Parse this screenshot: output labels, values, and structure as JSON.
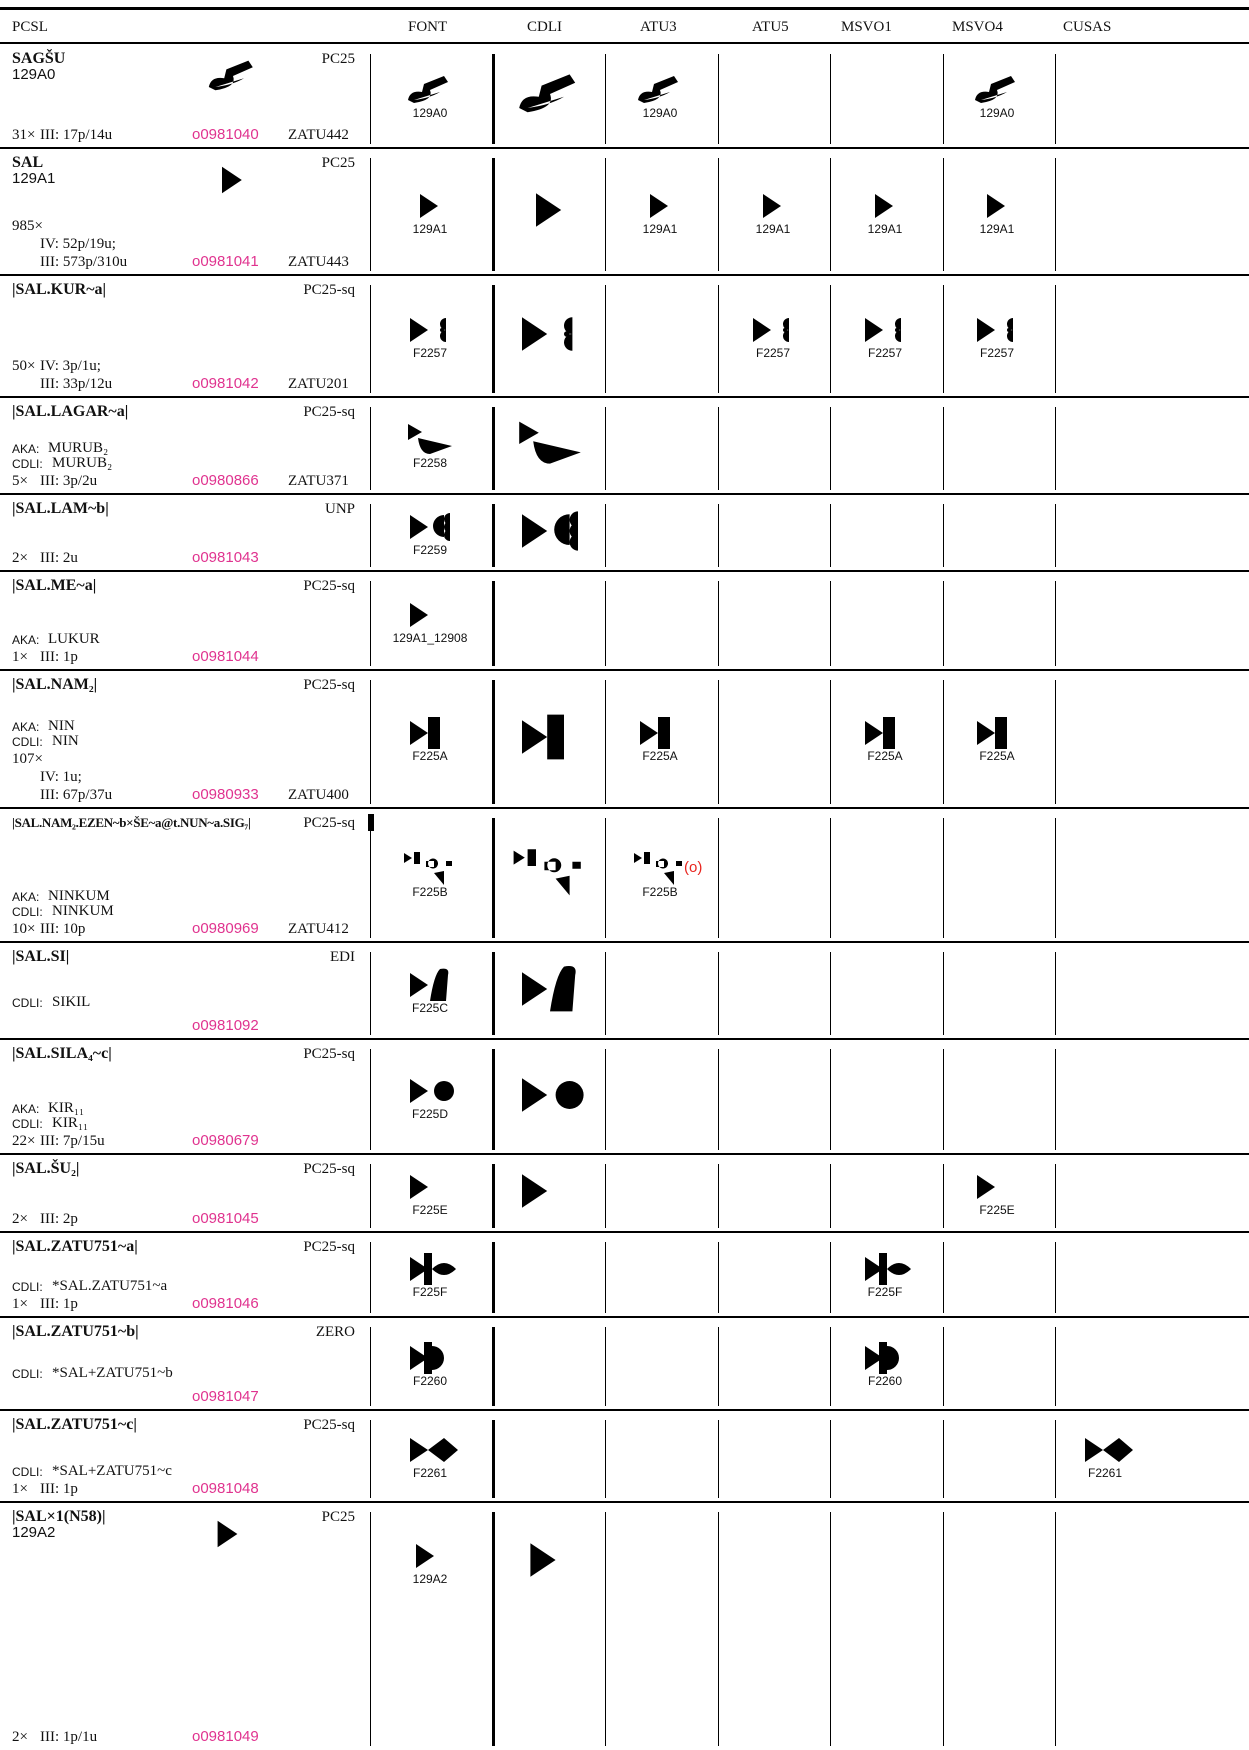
{
  "header": {
    "columns": [
      "PCSL",
      "FONT",
      "CDLI",
      "ATU3",
      "ATU5",
      "MSVO1",
      "MSVO4",
      "CUSAS"
    ]
  },
  "rows": [
    {
      "name": "SAGŠU",
      "code": "129A0",
      "status": "PC25",
      "notes": [],
      "count": "31×",
      "periods": [
        "III: 17p/14u"
      ],
      "id": "o0981040",
      "zatu": "ZATU442",
      "cells": [
        "129A0",
        true,
        "129A0",
        null,
        null,
        "129A0",
        null
      ]
    },
    {
      "name": "SAL",
      "code": "129A1",
      "status": "PC25",
      "notes": [],
      "count": "985×",
      "periods": [
        "IV: 52p/19u;",
        "III: 573p/310u"
      ],
      "id": "o0981041",
      "zatu": "ZATU443",
      "cells": [
        "129A1",
        true,
        "129A1",
        "129A1",
        "129A1",
        "129A1",
        null
      ]
    },
    {
      "name": "|SAL.KUR~a|",
      "status": "PC25-sq",
      "notes": [],
      "count": "50×",
      "periods": [
        "IV: 3p/1u;",
        "III: 33p/12u"
      ],
      "id": "o0981042",
      "zatu": "ZATU201",
      "cells": [
        "F2257",
        true,
        null,
        "F2257",
        "F2257",
        "F2257",
        null
      ]
    },
    {
      "name": "|SAL.LAGAR~a|",
      "status": "PC25-sq",
      "notes": [
        {
          "tag": "AKA:",
          "text": "MURUB₂"
        },
        {
          "tag": "CDLI:",
          "text": "MURUB₂"
        }
      ],
      "count": "5×",
      "periods": [
        "III: 3p/2u"
      ],
      "id": "o0980866",
      "zatu": "ZATU371",
      "cells": [
        "F2258",
        true,
        null,
        null,
        null,
        null,
        null
      ]
    },
    {
      "name": "|SAL.LAM~b|",
      "status": "UNP",
      "notes": [],
      "count": "2×",
      "periods": [
        "III: 2u"
      ],
      "id": "o0981043",
      "cells": [
        "F2259",
        true,
        null,
        null,
        null,
        null,
        null
      ]
    },
    {
      "name": "|SAL.ME~a|",
      "status": "PC25-sq",
      "notes": [
        {
          "tag": "AKA:",
          "text": "LUKUR"
        }
      ],
      "count": "1×",
      "periods": [
        "III: 1p"
      ],
      "id": "o0981044",
      "cells": [
        "129A1_12908",
        null,
        null,
        null,
        null,
        null,
        null
      ]
    },
    {
      "name": "|SAL.NAM₂|",
      "status": "PC25-sq",
      "notes": [
        {
          "tag": "AKA:",
          "text": "NIN"
        },
        {
          "tag": "CDLI:",
          "text": "NIN"
        }
      ],
      "count": "107×",
      "periods": [
        "IV: 1u;",
        "III: 67p/37u"
      ],
      "id": "o0980933",
      "zatu": "ZATU400",
      "cells": [
        "F225A",
        true,
        "F225A",
        null,
        "F225A",
        "F225A",
        null
      ]
    },
    {
      "name": "|SAL.NAM₂.EZEN~b×ŠE~a@t.NUN~a.SIG₇|",
      "status": "PC25-sq",
      "notes": [
        {
          "tag": "AKA:",
          "text": "NINKUM"
        },
        {
          "tag": "CDLI:",
          "text": "NINKUM"
        }
      ],
      "count": "10×",
      "periods": [
        "III: 10p"
      ],
      "id": "o0980969",
      "zatu": "ZATU412",
      "cells": [
        "F225B",
        true,
        {
          "label": "F225B",
          "note": "(o)",
          "color": "#e8251f"
        },
        null,
        null,
        null,
        null
      ]
    },
    {
      "name": "|SAL.SI|",
      "status": "EDI",
      "notes": [
        {
          "tag": "CDLI:",
          "text": "SIKIL"
        }
      ],
      "periods": [],
      "id": "o0981092",
      "cells": [
        "F225C",
        true,
        null,
        null,
        null,
        null,
        null
      ]
    },
    {
      "name": "|SAL.SILA₄~c|",
      "status": "PC25-sq",
      "notes": [
        {
          "tag": "AKA:",
          "text": "KIR₁₁"
        },
        {
          "tag": "CDLI:",
          "text": "KIR₁₁"
        }
      ],
      "count": "22×",
      "periods": [
        "III: 7p/15u"
      ],
      "id": "o0980679",
      "cells": [
        "F225D",
        true,
        null,
        null,
        null,
        null,
        null
      ]
    },
    {
      "name": "|SAL.ŠU₂|",
      "status": "PC25-sq",
      "notes": [],
      "count": "2×",
      "periods": [
        "III: 2p"
      ],
      "id": "o0981045",
      "cells": [
        "F225E",
        true,
        null,
        null,
        null,
        "F225E",
        null
      ]
    },
    {
      "name": "|SAL.ZATU751~a|",
      "status": "PC25-sq",
      "notes": [
        {
          "tag": "CDLI:",
          "text": "*SAL.ZATU751~a"
        }
      ],
      "count": "1×",
      "periods": [
        "III: 1p"
      ],
      "id": "o0981046",
      "cells": [
        "F225F",
        null,
        null,
        null,
        "F225F",
        null,
        null
      ]
    },
    {
      "name": "|SAL.ZATU751~b|",
      "status": "ZERO",
      "notes": [
        {
          "tag": "CDLI:",
          "text": "*SAL+ZATU751~b"
        }
      ],
      "periods": [],
      "id": "o0981047",
      "cells": [
        "F2260",
        null,
        null,
        null,
        "F2260",
        null,
        null
      ]
    },
    {
      "name": "|SAL.ZATU751~c|",
      "status": "PC25-sq",
      "notes": [
        {
          "tag": "CDLI:",
          "text": "*SAL+ZATU751~c"
        }
      ],
      "count": "1×",
      "periods": [
        "III: 1p"
      ],
      "id": "o0981048",
      "cells": [
        "F2261",
        null,
        null,
        null,
        null,
        null,
        "F2261"
      ]
    },
    {
      "name": "|SAL×1(N58)|",
      "code": "129A2",
      "status": "PC25",
      "notes": [],
      "count": "2×",
      "periods": [
        "III: 1p/1u"
      ],
      "id": "o0981049",
      "cells": [
        "129A2",
        true,
        null,
        null,
        null,
        null,
        null
      ]
    }
  ]
}
